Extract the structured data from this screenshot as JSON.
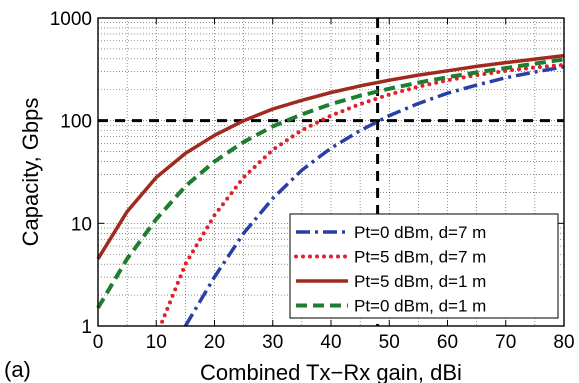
{
  "panel_label": "(a)",
  "chart_data": {
    "type": "line",
    "title": "",
    "xlabel": "Combined Tx−Rx gain, dBi",
    "ylabel": "Capacity, Gbps",
    "xlim": [
      0,
      80
    ],
    "ylim": [
      1,
      1000
    ],
    "yscale": "log",
    "grid": true,
    "legend_position": "bottom-right",
    "x_ticks": [
      "0",
      "10",
      "20",
      "30",
      "40",
      "50",
      "60",
      "70",
      "80"
    ],
    "y_ticks": [
      "1",
      "10",
      "100",
      "1000"
    ],
    "reference_lines": {
      "x": 48,
      "y": 100
    },
    "series": [
      {
        "name": "Pt=0 dBm, d=7 m",
        "style": "dash-dot",
        "color": "#2b3ea6",
        "x": [
          15,
          20,
          25,
          30,
          35,
          40,
          45,
          50,
          55,
          60,
          65,
          70,
          75,
          80
        ],
        "y": [
          1.0,
          3.0,
          8.0,
          17.5,
          33,
          54,
          80,
          112,
          147,
          185,
          222,
          262,
          298,
          335
        ]
      },
      {
        "name": "Pt=5 dBm, d=7 m",
        "style": "dotted",
        "color": "#e0202a",
        "x": [
          11,
          15,
          20,
          25,
          30,
          35,
          40,
          45,
          50,
          55,
          60,
          65,
          70,
          75,
          80
        ],
        "y": [
          1.1,
          4.0,
          12,
          28,
          52,
          81,
          112,
          145,
          180,
          214,
          247,
          278,
          305,
          330,
          350
        ]
      },
      {
        "name": "Pt=5 dBm, d=1 m",
        "style": "solid",
        "color": "#a02a1e",
        "x": [
          0,
          5,
          10,
          15,
          20,
          25,
          30,
          35,
          40,
          45,
          50,
          55,
          60,
          65,
          70,
          75,
          80
        ],
        "y": [
          4.5,
          13,
          28,
          48,
          72,
          100,
          130,
          158,
          188,
          218,
          248,
          278,
          306,
          338,
          368,
          398,
          430
        ]
      },
      {
        "name": "Pt=0 dBm, d=1 m",
        "style": "dashed",
        "color": "#1e7d2e",
        "x": [
          0,
          5,
          10,
          15,
          20,
          25,
          30,
          35,
          40,
          45,
          50,
          55,
          60,
          65,
          70,
          75,
          80
        ],
        "y": [
          1.5,
          4.5,
          11,
          23,
          40,
          62,
          88,
          115,
          145,
          175,
          205,
          235,
          265,
          295,
          325,
          360,
          395
        ]
      }
    ]
  }
}
